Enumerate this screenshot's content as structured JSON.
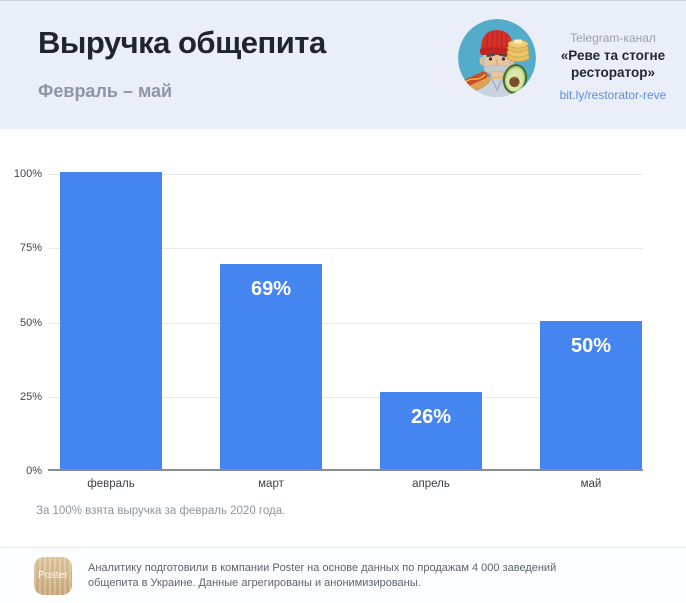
{
  "header": {
    "title": "Выручка общепита",
    "subtitle": "Февраль – май",
    "channel": {
      "label": "Telegram-канал",
      "name": "«Реве та стогне ресторатор»",
      "link": "bit.ly/restorator-reve"
    }
  },
  "chart_data": {
    "type": "bar",
    "categories": [
      "февраль",
      "март",
      "апрель",
      "май"
    ],
    "values": [
      100,
      69,
      26,
      50
    ],
    "bar_labels": [
      "",
      "69%",
      "26%",
      "50%"
    ],
    "title": "Выручка общепита",
    "xlabel": "",
    "ylabel": "",
    "ylim": [
      0,
      100
    ],
    "yticks": [
      0,
      25,
      50,
      75,
      100
    ],
    "ytick_labels": [
      "0%",
      "25%",
      "50%",
      "75%",
      "100%"
    ],
    "grid": true,
    "legend": "none",
    "bar_color": "#4585f0",
    "label_color": "#ffffff"
  },
  "footnote": "За 100% взята выручка за февраль 2020 года.",
  "footer": {
    "logo_text": "Poster",
    "text": "Аналитику подготовили в компании Poster на основе данных по продажам 4 000 заведений общепита в Украине. Данные агрегированы и анонимизированы."
  },
  "colors": {
    "header_bg": "#e9eef9",
    "bar": "#4585f0",
    "link": "#5b8ddb",
    "axis": "#888c93"
  }
}
